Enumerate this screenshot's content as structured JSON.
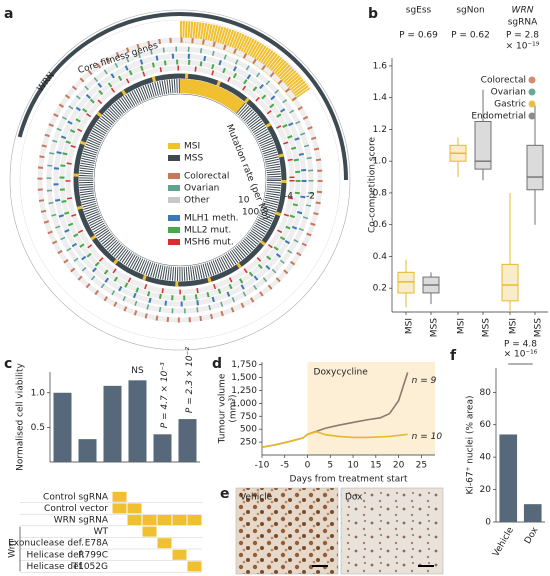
{
  "panel_labels": [
    "a",
    "b",
    "c",
    "d",
    "e",
    "f"
  ],
  "panel_a": {
    "labels": {
      "wrn": "WRN",
      "core": "Core fitness genes",
      "mutation": "Mutation rate (per Mb)"
    },
    "ticks": [
      "10",
      "100",
      "-4",
      "-2"
    ],
    "legend": [
      {
        "label": "MSI",
        "color": "#f0c030"
      },
      {
        "label": "MSS",
        "color": "#3d4a52"
      },
      {
        "label": "Colorectal",
        "color": "#c8785a"
      },
      {
        "label": "Ovarian",
        "color": "#5fa391"
      },
      {
        "label": "Other",
        "color": "#c8c8c8"
      },
      {
        "label": "MLH1 meth.",
        "color": "#3a78b8"
      },
      {
        "label": "MLL2 mut.",
        "color": "#4aa84a"
      },
      {
        "label": "MSH6 mut.",
        "color": "#d43030"
      }
    ]
  },
  "chart_data": [
    {
      "type": "box",
      "ylabel": "Co-competition score",
      "ylim": [
        0.05,
        1.65
      ],
      "yticks": [
        0.2,
        0.4,
        0.6,
        0.8,
        {
          "value": 1,
          "label": "1.0"
        },
        1.2,
        1.4,
        1.6
      ],
      "groups": [
        [
          "sgEss"
        ],
        [
          "sgNon"
        ],
        [
          "WRN",
          "sgRNA"
        ]
      ],
      "p_values": [
        [
          "P = 0.69"
        ],
        [
          "P = 0.62"
        ],
        [
          "P = 2.8",
          "× 10⁻¹⁹"
        ]
      ],
      "categories": [
        "MSI",
        "MSS",
        "MSI",
        "MSS",
        "MSI",
        "MSS"
      ],
      "box_colors": [
        "#e8b828",
        "#707070"
      ],
      "boxes": [
        {
          "whislo": 0.08,
          "q1": 0.17,
          "med": 0.24,
          "q3": 0.3,
          "whishi": 0.38
        },
        {
          "whislo": 0.1,
          "q1": 0.17,
          "med": 0.22,
          "q3": 0.27,
          "whishi": 0.3
        },
        {
          "whislo": 0.9,
          "q1": 1.0,
          "med": 1.05,
          "q3": 1.1,
          "whishi": 1.15
        },
        {
          "whislo": 0.88,
          "q1": 0.95,
          "med": 1.0,
          "q3": 1.25,
          "whishi": 1.45
        },
        {
          "whislo": 0.05,
          "q1": 0.12,
          "med": 0.22,
          "q3": 0.35,
          "whishi": 0.8
        },
        {
          "whislo": 0.6,
          "q1": 0.82,
          "med": 0.9,
          "q3": 1.1,
          "whishi": 1.35
        }
      ],
      "legend": [
        {
          "label": "Colorectal",
          "color": "#d98a6c"
        },
        {
          "label": "Ovarian",
          "color": "#6aa89a"
        },
        {
          "label": "Gastric",
          "color": "#e6c04a"
        },
        {
          "label": "Endometrial",
          "color": "#8c8c8c"
        }
      ]
    },
    {
      "type": "bar",
      "ylabel": "Normalised cell viability",
      "ylim": [
        0,
        1.3
      ],
      "yticks": [
        0.5,
        {
          "value": 1,
          "label": "1.0"
        }
      ],
      "values": [
        1.0,
        0.33,
        1.1,
        1.18,
        0.4,
        0.62
      ],
      "color": "#56687a",
      "annotations": [
        null,
        null,
        null,
        "NS",
        "P = 4.7 × 10⁻³",
        "P = 2.3 × 10⁻²"
      ],
      "matrix": {
        "rows": [
          "Control sgRNA",
          "Control vector",
          "WRN sgRNA",
          "WT",
          "E78A",
          "R799C",
          "T1052G"
        ],
        "row_groups": [
          null,
          null,
          null,
          null,
          "Exonuclease def.",
          "Helicase def.",
          "Helicase def."
        ],
        "group_label": "Wrn",
        "color": "#f0c030",
        "cells": [
          [
            1,
            0,
            0,
            0,
            0,
            0
          ],
          [
            1,
            1,
            0,
            0,
            0,
            0
          ],
          [
            0,
            1,
            1,
            1,
            1,
            1
          ],
          [
            0,
            0,
            1,
            0,
            0,
            0
          ],
          [
            0,
            0,
            0,
            1,
            0,
            0
          ],
          [
            0,
            0,
            0,
            0,
            1,
            0
          ],
          [
            0,
            0,
            0,
            0,
            0,
            1
          ]
        ]
      }
    },
    {
      "type": "line",
      "xlabel": "Days from treatment start",
      "ylabel": [
        "Tumour volume",
        "(mm³)"
      ],
      "annotation": "Doxycycline",
      "treatment_start": 0,
      "xlim": [
        -10,
        28
      ],
      "ylim": [
        0,
        1800
      ],
      "xticks": [
        -10,
        -5,
        0,
        5,
        10,
        15,
        20,
        25
      ],
      "yticks": [
        250,
        500,
        750,
        {
          "value": 1000,
          "label": "1,000"
        },
        {
          "value": 1250,
          "label": "1,250"
        },
        {
          "value": 1500,
          "label": "1,500"
        },
        {
          "value": 1750,
          "label": "1,750"
        }
      ],
      "x": [
        -10,
        -7,
        -4,
        -1,
        0,
        2,
        4,
        7,
        10,
        13,
        16,
        18,
        20,
        22
      ],
      "series": [
        {
          "name": "n = 9",
          "color": "#8a7a6e",
          "values": [
            150,
            200,
            260,
            330,
            400,
            460,
            520,
            580,
            630,
            680,
            720,
            800,
            1050,
            1600
          ]
        },
        {
          "name": "n = 10",
          "color": "#e8b828",
          "values": [
            150,
            200,
            260,
            330,
            400,
            450,
            390,
            360,
            340,
            340,
            350,
            360,
            380,
            400
          ]
        }
      ]
    },
    {
      "type": "bar",
      "ylabel": "Ki-67⁺ nuclei (% area)",
      "categories": [
        "Vehicle",
        "Dox"
      ],
      "values": [
        54,
        11
      ],
      "color": "#56687a",
      "ylim": [
        0,
        95
      ],
      "yticks": [
        0,
        20,
        40,
        60,
        80
      ],
      "p_value": [
        "P = 4.8",
        "× 10⁻¹⁶"
      ]
    }
  ],
  "panel_e": {
    "labels": [
      "Vehicle",
      "Dox"
    ]
  }
}
